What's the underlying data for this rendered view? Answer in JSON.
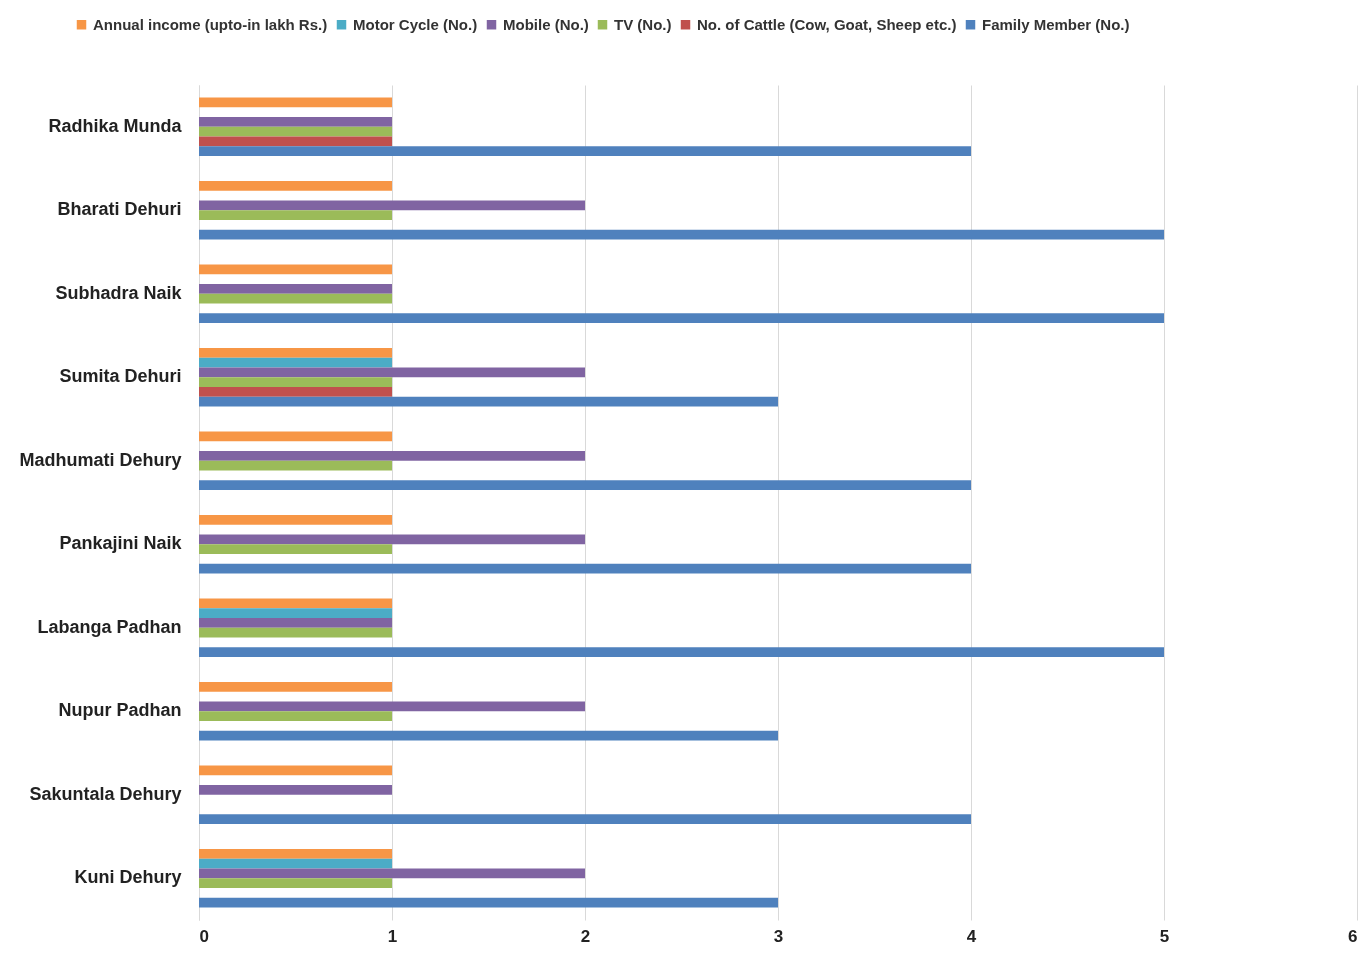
{
  "chart_data": {
    "type": "bar",
    "orientation": "horizontal",
    "categories": [
      "Radhika Munda",
      "Bharati Dehuri",
      "Subhadra Naik",
      "Sumita Dehuri",
      "Madhumati Dehury",
      "Pankajini Naik",
      "Labanga Padhan",
      "Nupur Padhan",
      "Sakuntala Dehury",
      "Kuni Dehury"
    ],
    "series": [
      {
        "name": "Annual income (upto-in lakh Rs.)",
        "color": "#f79646",
        "values": [
          1,
          1,
          1,
          1,
          1,
          1,
          1,
          1,
          1,
          1
        ]
      },
      {
        "name": "Motor Cycle (No.)",
        "color": "#4bacc6",
        "values": [
          null,
          null,
          null,
          1,
          null,
          null,
          1,
          null,
          null,
          1
        ]
      },
      {
        "name": "Mobile (No.)",
        "color": "#8064a2",
        "values": [
          1,
          2,
          1,
          2,
          2,
          2,
          1,
          2,
          1,
          2
        ]
      },
      {
        "name": "TV (No.)",
        "color": "#9bbb59",
        "values": [
          1,
          1,
          1,
          1,
          1,
          1,
          1,
          1,
          null,
          1
        ]
      },
      {
        "name": "No. of Cattle (Cow, Goat, Sheep etc.)",
        "color": "#c0504d",
        "values": [
          1,
          null,
          null,
          1,
          null,
          null,
          null,
          null,
          null,
          null
        ]
      },
      {
        "name": "Family Member (No.)",
        "color": "#4f81bd",
        "values": [
          4,
          5,
          5,
          3,
          4,
          4,
          5,
          3,
          4,
          3
        ]
      }
    ],
    "xlim": [
      0,
      6
    ],
    "xticks": [
      0,
      1,
      2,
      3,
      4,
      5,
      6
    ],
    "grid": "x",
    "legend": "top"
  }
}
